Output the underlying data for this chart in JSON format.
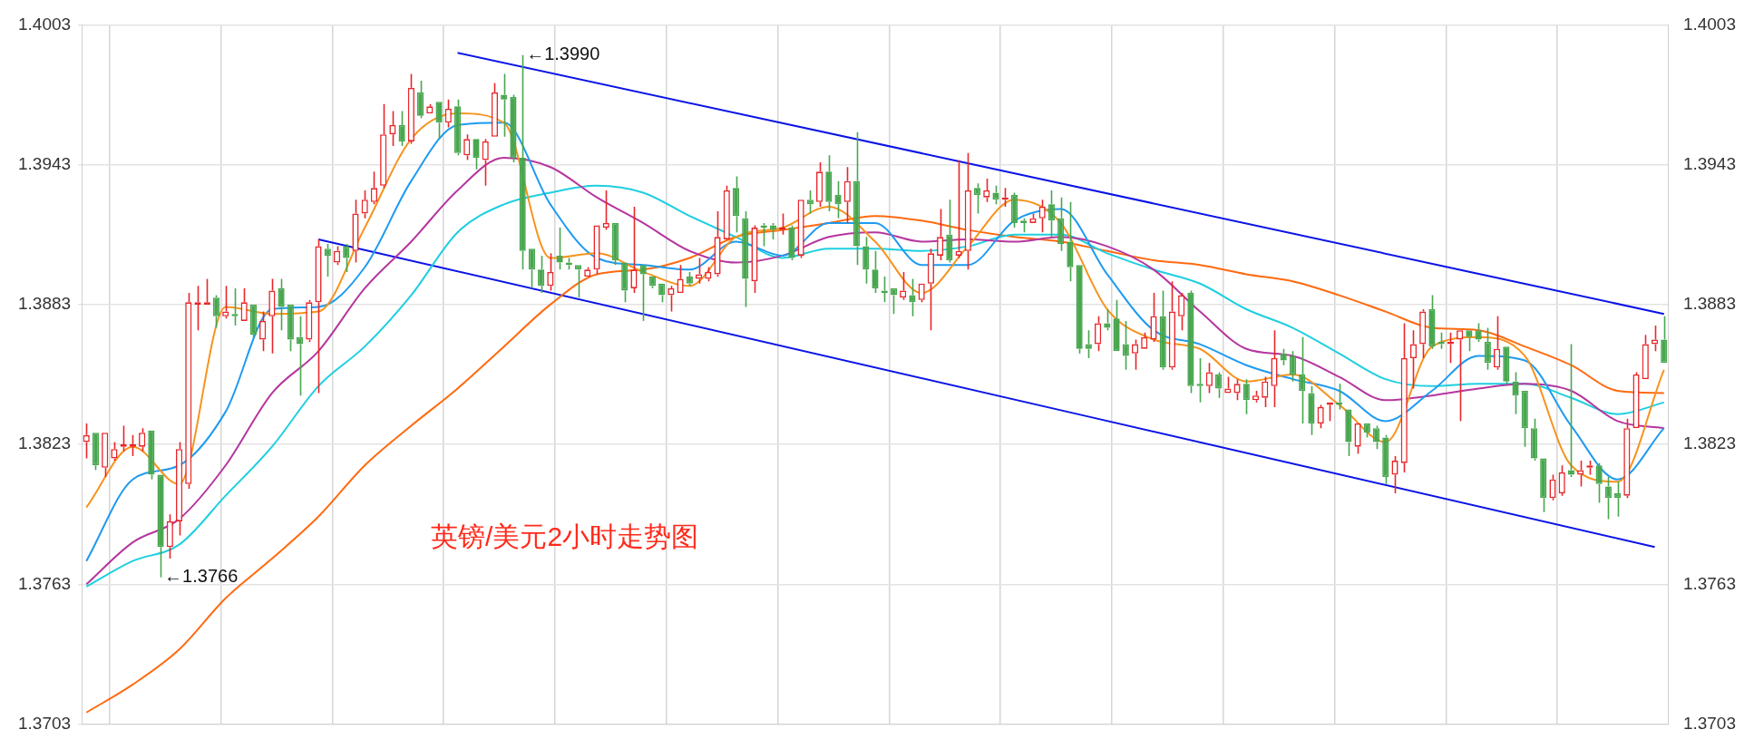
{
  "chart_data": {
    "type": "candlestick",
    "annotations": [
      "英镑/美元2小时走势图",
      "←1.3990",
      "←1.3766"
    ],
    "categories": [
      null,
      null,
      null,
      null,
      null,
      null,
      null,
      null,
      null,
      null,
      null,
      null,
      null,
      null,
      null,
      null,
      null,
      null,
      null,
      null,
      null,
      null,
      null,
      null,
      null,
      null,
      null,
      null,
      null,
      null,
      null,
      null,
      null,
      null,
      null,
      null,
      null,
      null,
      null,
      null,
      null,
      null,
      null,
      null,
      null,
      null,
      null,
      null,
      null,
      null,
      null,
      null,
      null,
      null,
      null,
      null,
      null,
      null,
      null,
      null,
      null,
      null,
      null,
      null,
      null,
      null,
      null,
      null,
      null,
      null,
      null,
      null,
      null,
      null,
      null,
      null,
      null,
      null,
      null,
      null,
      null,
      null,
      null,
      null,
      null,
      null,
      null,
      null,
      null,
      null,
      null,
      null,
      null,
      null,
      null,
      null,
      null,
      null,
      null,
      null,
      null,
      null,
      null,
      null,
      null,
      null,
      null,
      null,
      null,
      null,
      null,
      null,
      null,
      null,
      null,
      null,
      null,
      null,
      null,
      null,
      null,
      null,
      null,
      null,
      null,
      null,
      null,
      null,
      null,
      null,
      null,
      null,
      null,
      null,
      null,
      null,
      null,
      null,
      null,
      null,
      null,
      null,
      null,
      null,
      null,
      null,
      null,
      null,
      null,
      null,
      null,
      null,
      null,
      null,
      null,
      null,
      null,
      null,
      null,
      null,
      null,
      null,
      null,
      null,
      null,
      null,
      null,
      null,
      null,
      null,
      null
    ],
    "ohlc": [
      [
        1.3824,
        1.3832,
        1.3817,
        1.3827
      ],
      [
        1.3828,
        1.3828,
        1.3812,
        1.3814
      ],
      [
        1.3813,
        1.3828,
        1.3809,
        1.3828
      ],
      [
        1.3817,
        1.3824,
        1.3816,
        1.3821
      ],
      [
        1.3822,
        1.3831,
        1.382,
        1.3823
      ],
      [
        1.3822,
        1.3827,
        1.3818,
        1.3823
      ],
      [
        1.3822,
        1.383,
        1.382,
        1.3828
      ],
      [
        1.3829,
        1.3829,
        1.3808,
        1.381
      ],
      [
        1.381,
        1.381,
        1.3766,
        1.3779
      ],
      [
        1.3779,
        1.3793,
        1.3774,
        1.379
      ],
      [
        1.379,
        1.3824,
        1.3784,
        1.3821
      ],
      [
        1.3806,
        1.3888,
        1.3804,
        1.3884
      ],
      [
        1.3883,
        1.3891,
        1.3872,
        1.3884
      ],
      [
        1.3883,
        1.3894,
        1.3883,
        1.3884
      ],
      [
        1.3886,
        1.3887,
        1.3873,
        1.3878
      ],
      [
        1.3878,
        1.3891,
        1.3877,
        1.388
      ],
      [
        1.3879,
        1.389,
        1.3874,
        1.3878
      ],
      [
        1.3876,
        1.389,
        1.3876,
        1.3884
      ],
      [
        1.3883,
        1.3883,
        1.3869,
        1.387
      ],
      [
        1.3868,
        1.388,
        1.3863,
        1.3876
      ],
      [
        1.3878,
        1.3894,
        1.3862,
        1.3889
      ],
      [
        1.389,
        1.3894,
        1.3872,
        1.3882
      ],
      [
        1.3883,
        1.3883,
        1.3863,
        1.3868
      ],
      [
        1.3869,
        1.3878,
        1.3844,
        1.3866
      ],
      [
        1.3868,
        1.3885,
        1.3867,
        1.3884
      ],
      [
        1.3884,
        1.3911,
        1.3845,
        1.3908
      ],
      [
        1.3907,
        1.3909,
        1.3895,
        1.3904
      ],
      [
        1.3901,
        1.3908,
        1.39,
        1.3906
      ],
      [
        1.3908,
        1.3909,
        1.3897,
        1.3903
      ],
      [
        1.3906,
        1.3928,
        1.3901,
        1.3922
      ],
      [
        1.3922,
        1.3932,
        1.392,
        1.3928
      ],
      [
        1.3927,
        1.394,
        1.3926,
        1.3933
      ],
      [
        1.3934,
        1.3969,
        1.3933,
        1.3956
      ],
      [
        1.3956,
        1.3966,
        1.3951,
        1.396
      ],
      [
        1.396,
        1.3966,
        1.3951,
        1.3953
      ],
      [
        1.3953,
        1.3982,
        1.3952,
        1.3976
      ],
      [
        1.3974,
        1.3979,
        1.3963,
        1.3964
      ],
      [
        1.3965,
        1.3969,
        1.3965,
        1.3968
      ],
      [
        1.397,
        1.397,
        1.3954,
        1.3961
      ],
      [
        1.3961,
        1.3971,
        1.3959,
        1.3967
      ],
      [
        1.3968,
        1.3971,
        1.3947,
        1.3948
      ],
      [
        1.3947,
        1.3956,
        1.3945,
        1.3954
      ],
      [
        1.3954,
        1.3954,
        1.3941,
        1.3946
      ],
      [
        1.3945,
        1.3954,
        1.3934,
        1.3953
      ],
      [
        1.3955,
        1.3978,
        1.3955,
        1.3974
      ],
      [
        1.3973,
        1.3982,
        1.3955,
        1.3971
      ],
      [
        1.3972,
        1.3973,
        1.3944,
        1.3946
      ],
      [
        1.3946,
        1.399,
        1.3898,
        1.3906
      ],
      [
        1.3907,
        1.3907,
        1.389,
        1.3898
      ],
      [
        1.3898,
        1.3904,
        1.3888,
        1.3891
      ],
      [
        1.3891,
        1.3905,
        1.3889,
        1.3897
      ],
      [
        1.3904,
        1.3916,
        1.3898,
        1.3901
      ],
      [
        1.3901,
        1.3903,
        1.3898,
        1.39
      ],
      [
        1.39,
        1.39,
        1.3886,
        1.3898
      ],
      [
        1.3895,
        1.3899,
        1.3895,
        1.3898
      ],
      [
        1.3898,
        1.3917,
        1.3896,
        1.3917
      ],
      [
        1.3916,
        1.3932,
        1.3915,
        1.3918
      ],
      [
        1.3918,
        1.3918,
        1.39,
        1.3902
      ],
      [
        1.3901,
        1.3901,
        1.3884,
        1.3889
      ],
      [
        1.389,
        1.3925,
        1.3888,
        1.3898
      ],
      [
        1.39,
        1.39,
        1.3876,
        1.3896
      ],
      [
        1.3895,
        1.3895,
        1.389,
        1.3891
      ],
      [
        1.3892,
        1.3892,
        1.3884,
        1.3887
      ],
      [
        1.3887,
        1.3891,
        1.388,
        1.389
      ],
      [
        1.3888,
        1.39,
        1.3888,
        1.3894
      ],
      [
        1.3895,
        1.3897,
        1.3891,
        1.3892
      ],
      [
        1.3894,
        1.3903,
        1.3892,
        1.3896
      ],
      [
        1.3894,
        1.3899,
        1.3893,
        1.3897
      ],
      [
        1.3896,
        1.3923,
        1.3895,
        1.3912
      ],
      [
        1.3911,
        1.3934,
        1.3911,
        1.3932
      ],
      [
        1.3933,
        1.3938,
        1.3914,
        1.3921
      ],
      [
        1.392,
        1.3923,
        1.3882,
        1.3894
      ],
      [
        1.3893,
        1.3917,
        1.3888,
        1.3916
      ],
      [
        1.3917,
        1.3918,
        1.3908,
        1.3916
      ],
      [
        1.3917,
        1.3918,
        1.3911,
        1.3915
      ],
      [
        1.3915,
        1.3922,
        1.3913,
        1.3916
      ],
      [
        1.3916,
        1.3917,
        1.3902,
        1.3903
      ],
      [
        1.3904,
        1.3928,
        1.3903,
        1.3928
      ],
      [
        1.3928,
        1.3932,
        1.3922,
        1.3926
      ],
      [
        1.3927,
        1.3944,
        1.3925,
        1.394
      ],
      [
        1.394,
        1.3947,
        1.3923,
        1.3927
      ],
      [
        1.393,
        1.3936,
        1.392,
        1.3926
      ],
      [
        1.3927,
        1.3942,
        1.3918,
        1.3936
      ],
      [
        1.3936,
        1.3957,
        1.39,
        1.3908
      ],
      [
        1.3908,
        1.3912,
        1.3892,
        1.3898
      ],
      [
        1.3898,
        1.3906,
        1.3888,
        1.389
      ],
      [
        1.3889,
        1.3895,
        1.3884,
        1.3888
      ],
      [
        1.389,
        1.389,
        1.3879,
        1.3887
      ],
      [
        1.3886,
        1.3897,
        1.3885,
        1.3889
      ],
      [
        1.3887,
        1.3894,
        1.3878,
        1.3884
      ],
      [
        1.3885,
        1.3892,
        1.3884,
        1.3892
      ],
      [
        1.3892,
        1.3907,
        1.3872,
        1.3905
      ],
      [
        1.3904,
        1.3924,
        1.3902,
        1.3912
      ],
      [
        1.3913,
        1.3928,
        1.3901,
        1.3902
      ],
      [
        1.3904,
        1.3945,
        1.3903,
        1.3906
      ],
      [
        1.3906,
        1.3948,
        1.3898,
        1.3932
      ],
      [
        1.3933,
        1.3935,
        1.3922,
        1.393
      ],
      [
        1.3929,
        1.3937,
        1.3927,
        1.3932
      ],
      [
        1.3931,
        1.3934,
        1.3926,
        1.3928
      ],
      [
        1.3928,
        1.3933,
        1.3925,
        1.3929
      ],
      [
        1.393,
        1.3931,
        1.3916,
        1.3918
      ],
      [
        1.3919,
        1.392,
        1.3914,
        1.3918
      ],
      [
        1.3918,
        1.3922,
        1.3918,
        1.392
      ],
      [
        1.392,
        1.3928,
        1.3914,
        1.3925
      ],
      [
        1.3926,
        1.3932,
        1.3912,
        1.3919
      ],
      [
        1.392,
        1.3929,
        1.3906,
        1.3909
      ],
      [
        1.391,
        1.3927,
        1.3893,
        1.3899
      ],
      [
        1.39,
        1.39,
        1.3862,
        1.3864
      ],
      [
        1.3866,
        1.3872,
        1.386,
        1.3864
      ],
      [
        1.3866,
        1.3878,
        1.3863,
        1.3875
      ],
      [
        1.3875,
        1.3881,
        1.3872,
        1.3873
      ],
      [
        1.3877,
        1.3885,
        1.3863,
        1.3863
      ],
      [
        1.3866,
        1.3876,
        1.3855,
        1.3861
      ],
      [
        1.3862,
        1.3868,
        1.3855,
        1.3866
      ],
      [
        1.3864,
        1.3871,
        1.3864,
        1.3869
      ],
      [
        1.3868,
        1.3888,
        1.3867,
        1.3878
      ],
      [
        1.3878,
        1.3889,
        1.3855,
        1.3856
      ],
      [
        1.3856,
        1.3893,
        1.3855,
        1.388
      ],
      [
        1.3878,
        1.3888,
        1.3872,
        1.3887
      ],
      [
        1.3888,
        1.3889,
        1.3845,
        1.3848
      ],
      [
        1.3849,
        1.386,
        1.3841,
        1.3848
      ],
      [
        1.3848,
        1.3858,
        1.3845,
        1.3854
      ],
      [
        1.3853,
        1.3854,
        1.3843,
        1.3847
      ],
      [
        1.3845,
        1.3852,
        1.3845,
        1.3847
      ],
      [
        1.3845,
        1.3851,
        1.3842,
        1.3849
      ],
      [
        1.3849,
        1.3851,
        1.3836,
        1.3842
      ],
      [
        1.3842,
        1.3846,
        1.3841,
        1.3844
      ],
      [
        1.3843,
        1.3852,
        1.3839,
        1.385
      ],
      [
        1.3848,
        1.3872,
        1.3839,
        1.386
      ],
      [
        1.3862,
        1.3864,
        1.3857,
        1.3859
      ],
      [
        1.3861,
        1.3863,
        1.385,
        1.3853
      ],
      [
        1.3853,
        1.3869,
        1.3832,
        1.3846
      ],
      [
        1.3845,
        1.3848,
        1.3827,
        1.3832
      ],
      [
        1.3832,
        1.384,
        1.383,
        1.3839
      ],
      [
        1.384,
        1.3841,
        1.3833,
        1.3841
      ],
      [
        1.3841,
        1.3849,
        1.3838,
        1.384
      ],
      [
        1.3838,
        1.3838,
        1.3818,
        1.3824
      ],
      [
        1.3822,
        1.3832,
        1.3819,
        1.3832
      ],
      [
        1.3832,
        1.3832,
        1.3826,
        1.3828
      ],
      [
        1.383,
        1.3831,
        1.3821,
        1.3824
      ],
      [
        1.3826,
        1.3827,
        1.3806,
        1.3809
      ],
      [
        1.381,
        1.3818,
        1.3802,
        1.3816
      ],
      [
        1.3815,
        1.3875,
        1.3811,
        1.386
      ],
      [
        1.386,
        1.3872,
        1.3847,
        1.3866
      ],
      [
        1.3866,
        1.3881,
        1.386,
        1.388
      ],
      [
        1.3881,
        1.3887,
        1.3864,
        1.3865
      ],
      [
        1.3867,
        1.3871,
        1.3864,
        1.3866
      ],
      [
        1.3866,
        1.3871,
        1.3858,
        1.3867
      ],
      [
        1.3868,
        1.3872,
        1.3833,
        1.3872
      ],
      [
        1.3872,
        1.3872,
        1.3863,
        1.3869
      ],
      [
        1.3872,
        1.3875,
        1.3867,
        1.3868
      ],
      [
        1.3867,
        1.3873,
        1.3855,
        1.3858
      ],
      [
        1.3856,
        1.3878,
        1.3855,
        1.3864
      ],
      [
        1.3865,
        1.3865,
        1.3849,
        1.385
      ],
      [
        1.385,
        1.3854,
        1.3836,
        1.3844
      ],
      [
        1.3846,
        1.3846,
        1.3822,
        1.383
      ],
      [
        1.383,
        1.3834,
        1.3816,
        1.3817
      ],
      [
        1.3817,
        1.3817,
        1.3794,
        1.38
      ],
      [
        1.38,
        1.381,
        1.3799,
        1.3808
      ],
      [
        1.3802,
        1.3814,
        1.3801,
        1.3811
      ],
      [
        1.3812,
        1.3866,
        1.3809,
        1.381
      ],
      [
        1.381,
        1.3816,
        1.3805,
        1.3812
      ],
      [
        1.3813,
        1.3816,
        1.381,
        1.3814
      ],
      [
        1.3814,
        1.3815,
        1.3798,
        1.3806
      ],
      [
        1.3805,
        1.3809,
        1.3791,
        1.38
      ],
      [
        1.3802,
        1.3807,
        1.3792,
        1.38
      ],
      [
        1.3801,
        1.3834,
        1.38,
        1.383
      ],
      [
        1.383,
        1.3854,
        1.383,
        1.3853
      ],
      [
        1.3851,
        1.387,
        1.3851,
        1.3866
      ],
      [
        1.3866,
        1.3874,
        1.3863,
        1.3868
      ],
      [
        1.3868,
        1.3878,
        1.3858,
        1.3858
      ]
    ],
    "colors": [
      "#e8262a",
      "#48a64f",
      "#e8262a",
      "#e8262a",
      "#e8262a",
      "#e8262a",
      "#e8262a",
      "#48a64f",
      "#48a64f",
      "#e8262a",
      "#e8262a",
      "#e8262a",
      "#e8262a",
      "#e8262a",
      "#48a64f",
      "#e8262a",
      "#48a64f",
      "#e8262a",
      "#48a64f",
      "#e8262a",
      "#e8262a",
      "#48a64f",
      "#48a64f",
      "#48a64f",
      "#e8262a",
      "#e8262a",
      "#48a64f",
      "#e8262a",
      "#48a64f",
      "#e8262a",
      "#e8262a",
      "#e8262a",
      "#e8262a",
      "#e8262a",
      "#48a64f",
      "#e8262a",
      "#48a64f",
      "#e8262a",
      "#48a64f",
      "#e8262a",
      "#48a64f",
      "#e8262a",
      "#48a64f",
      "#e8262a",
      "#e8262a",
      "#48a64f",
      "#48a64f",
      "#48a64f",
      "#48a64f",
      "#48a64f",
      "#e8262a",
      "#48a64f",
      "#48a64f",
      "#48a64f",
      "#e8262a",
      "#e8262a",
      "#e8262a",
      "#48a64f",
      "#48a64f",
      "#e8262a",
      "#48a64f",
      "#48a64f",
      "#48a64f",
      "#e8262a",
      "#e8262a",
      "#48a64f",
      "#e8262a",
      "#e8262a",
      "#e8262a",
      "#e8262a",
      "#48a64f",
      "#48a64f",
      "#e8262a",
      "#48a64f",
      "#48a64f",
      "#e8262a",
      "#48a64f",
      "#e8262a",
      "#48a64f",
      "#e8262a",
      "#48a64f",
      "#48a64f",
      "#e8262a",
      "#48a64f",
      "#48a64f",
      "#48a64f",
      "#48a64f",
      "#48a64f",
      "#e8262a",
      "#48a64f",
      "#e8262a",
      "#e8262a",
      "#e8262a",
      "#48a64f",
      "#e8262a",
      "#e8262a",
      "#48a64f",
      "#e8262a",
      "#48a64f",
      "#e8262a",
      "#48a64f",
      "#48a64f",
      "#e8262a",
      "#e8262a",
      "#48a64f",
      "#48a64f",
      "#48a64f",
      "#48a64f",
      "#48a64f",
      "#e8262a",
      "#48a64f",
      "#48a64f",
      "#48a64f",
      "#e8262a",
      "#e8262a",
      "#e8262a",
      "#48a64f",
      "#e8262a",
      "#e8262a",
      "#48a64f",
      "#48a64f",
      "#e8262a",
      "#48a64f",
      "#e8262a",
      "#e8262a",
      "#48a64f",
      "#e8262a",
      "#e8262a",
      "#e8262a",
      "#48a64f",
      "#48a64f",
      "#48a64f",
      "#48a64f",
      "#e8262a",
      "#e8262a",
      "#48a64f",
      "#48a64f",
      "#e8262a",
      "#48a64f",
      "#48a64f",
      "#48a64f",
      "#e8262a",
      "#e8262a",
      "#e8262a",
      "#e8262a",
      "#48a64f",
      "#48a64f",
      "#e8262a",
      "#e8262a",
      "#48a64f",
      "#48a64f",
      "#48a64f",
      "#e8262a",
      "#48a64f",
      "#48a64f",
      "#48a64f",
      "#48a64f",
      "#48a64f",
      "#e8262a",
      "#e8262a",
      "#48a64f",
      "#e8262a",
      "#e8262a",
      "#48a64f",
      "#48a64f",
      "#48a64f",
      "#e8262a",
      "#e8262a",
      "#e8262a",
      "#e8262a",
      "#48a64f"
    ],
    "series": [
      {
        "type": "line",
        "color": "#f7931e",
        "values": [
          1.3796,
          null,
          null,
          null,
          null,
          1.3822,
          null,
          null,
          null,
          null,
          1.3806,
          null,
          null,
          null,
          null,
          1.3882,
          null,
          null,
          null,
          null,
          1.3879,
          null,
          null,
          null,
          null,
          1.388,
          null,
          null,
          null,
          null,
          1.3916,
          null,
          null,
          null,
          null,
          1.3954,
          null,
          null,
          null,
          null,
          1.3965,
          null,
          null,
          null,
          null,
          1.3961,
          null,
          null,
          null,
          null,
          1.3903,
          null,
          null,
          null,
          null,
          1.3905,
          null,
          null,
          null,
          null,
          1.3897,
          null,
          null,
          null,
          null,
          1.3891,
          null,
          null,
          null,
          null,
          1.3912,
          null,
          null,
          null,
          null,
          1.3916,
          null,
          null,
          null,
          null,
          1.3925,
          null,
          null,
          null,
          null,
          1.391,
          null,
          null,
          null,
          null,
          1.3888,
          null,
          null,
          null,
          null,
          1.3908,
          null,
          null,
          null,
          null,
          1.3928,
          null,
          null,
          null,
          null,
          1.3918,
          null,
          null,
          null,
          null,
          1.3881,
          null,
          null,
          null,
          null,
          1.3868,
          null,
          null,
          null,
          null,
          1.3864,
          null,
          null,
          null,
          null,
          1.385,
          null,
          null,
          null,
          null,
          1.3853,
          null,
          null,
          null,
          null,
          1.384,
          null,
          null,
          null,
          null,
          1.3824,
          null,
          null,
          null,
          null,
          1.3865,
          null,
          null,
          null,
          null,
          1.3869,
          null,
          null,
          null,
          null,
          1.3861,
          null,
          null,
          null,
          null,
          1.3814,
          null,
          null,
          null,
          null,
          1.3807,
          null,
          null,
          null,
          null,
          1.3855
        ]
      },
      {
        "type": "line",
        "color": "#1e9bf0",
        "values": [
          1.3773,
          null,
          null,
          null,
          null,
          1.3808,
          null,
          null,
          null,
          null,
          1.3814,
          null,
          null,
          null,
          null,
          1.3837,
          null,
          null,
          null,
          null,
          1.3881,
          null,
          null,
          null,
          null,
          1.3882,
          null,
          null,
          null,
          null,
          1.3899,
          null,
          null,
          null,
          null,
          1.3936,
          null,
          null,
          null,
          null,
          1.396,
          null,
          null,
          null,
          null,
          1.3961,
          null,
          null,
          null,
          null,
          1.3926,
          null,
          null,
          null,
          null,
          1.3903,
          null,
          null,
          null,
          null,
          1.39,
          null,
          null,
          null,
          null,
          1.3898,
          null,
          null,
          null,
          null,
          1.391,
          null,
          null,
          null,
          null,
          1.3904,
          null,
          null,
          null,
          null,
          1.3918,
          null,
          null,
          null,
          null,
          1.3918,
          null,
          null,
          null,
          null,
          1.39,
          null,
          null,
          null,
          null,
          1.39,
          null,
          null,
          null,
          null,
          1.3919,
          null,
          null,
          null,
          null,
          1.3924,
          null,
          null,
          null,
          null,
          1.3896,
          null,
          null,
          null,
          null,
          1.3872,
          null,
          null,
          null,
          null,
          1.3866,
          null,
          null,
          null,
          null,
          1.3857,
          null,
          null,
          null,
          null,
          1.3851,
          null,
          null,
          null,
          null,
          1.3846,
          null,
          null,
          null,
          null,
          1.3833,
          null,
          null,
          null,
          null,
          1.3846,
          null,
          null,
          null,
          null,
          1.3861,
          null,
          null,
          null,
          null,
          1.3859,
          null,
          null,
          null,
          null,
          1.3831,
          null,
          null,
          null,
          null,
          1.3808,
          null,
          null,
          null,
          null,
          1.383
        ]
      },
      {
        "type": "line",
        "color": "#b5369f",
        "values": [
          1.3763,
          null,
          null,
          null,
          null,
          1.3781,
          null,
          null,
          null,
          null,
          1.3791,
          null,
          null,
          null,
          null,
          1.3814,
          null,
          null,
          null,
          null,
          1.3845,
          null,
          null,
          null,
          null,
          1.3863,
          null,
          null,
          null,
          null,
          1.389,
          null,
          null,
          null,
          null,
          1.391,
          null,
          null,
          null,
          null,
          1.3932,
          null,
          null,
          null,
          null,
          1.3946,
          null,
          null,
          null,
          null,
          1.3942,
          null,
          null,
          null,
          null,
          1.3929,
          null,
          null,
          null,
          null,
          1.3918,
          null,
          null,
          null,
          null,
          1.3906,
          null,
          null,
          null,
          null,
          1.3901,
          null,
          null,
          null,
          null,
          1.3904,
          null,
          null,
          null,
          null,
          1.3912,
          null,
          null,
          null,
          null,
          1.3914,
          null,
          null,
          null,
          null,
          1.391,
          null,
          null,
          null,
          null,
          1.3911,
          null,
          null,
          null,
          null,
          1.391,
          null,
          null,
          null,
          null,
          1.3912,
          null,
          null,
          null,
          null,
          1.3908,
          null,
          null,
          null,
          null,
          1.3898,
          null,
          null,
          null,
          null,
          1.388,
          null,
          null,
          null,
          null,
          1.3864,
          null,
          null,
          null,
          null,
          1.3861,
          null,
          null,
          null,
          null,
          1.3852,
          null,
          null,
          null,
          null,
          1.3842,
          null,
          null,
          null,
          null,
          1.3844,
          null,
          null,
          null,
          null,
          1.3847,
          null,
          null,
          null,
          null,
          1.3849,
          null,
          null,
          null,
          null,
          1.3846,
          null,
          null,
          null,
          null,
          1.3833,
          null,
          null,
          null,
          null,
          1.383
        ]
      },
      {
        "type": "line",
        "color": "#1ecfe0",
        "values": [
          1.3762,
          null,
          null,
          null,
          null,
          1.3773,
          null,
          null,
          null,
          null,
          1.378,
          null,
          null,
          null,
          null,
          1.3801,
          null,
          null,
          null,
          null,
          1.3822,
          null,
          null,
          null,
          null,
          1.3848,
          null,
          null,
          null,
          null,
          1.3865,
          null,
          null,
          null,
          null,
          1.3887,
          null,
          null,
          null,
          null,
          1.3914,
          null,
          null,
          null,
          null,
          1.3926,
          null,
          null,
          null,
          null,
          1.3931,
          null,
          null,
          null,
          null,
          1.3934,
          null,
          null,
          null,
          null,
          1.3931,
          null,
          null,
          null,
          null,
          1.3921,
          null,
          null,
          null,
          null,
          1.3912,
          null,
          null,
          null,
          null,
          1.3903,
          null,
          null,
          null,
          null,
          1.3907,
          null,
          null,
          null,
          null,
          1.3907,
          null,
          null,
          null,
          null,
          1.3906,
          null,
          null,
          null,
          null,
          1.3908,
          null,
          null,
          null,
          null,
          1.3913,
          null,
          null,
          null,
          null,
          1.3913,
          null,
          null,
          null,
          null,
          1.3905,
          null,
          null,
          null,
          null,
          1.3898,
          null,
          null,
          null,
          null,
          1.3892,
          null,
          null,
          null,
          null,
          1.3881,
          null,
          null,
          null,
          null,
          1.3873,
          null,
          null,
          null,
          null,
          1.3862,
          null,
          null,
          null,
          null,
          1.3851,
          null,
          null,
          null,
          null,
          1.3848,
          null,
          null,
          null,
          null,
          1.3849,
          null,
          null,
          null,
          null,
          1.3849,
          null,
          null,
          null,
          null,
          1.3843,
          null,
          null,
          null,
          null,
          1.3836,
          null,
          null,
          null,
          null,
          1.3841
        ]
      },
      {
        "type": "line",
        "color": "#ff6a10",
        "values": [
          1.3708,
          null,
          null,
          null,
          null,
          1.372,
          null,
          null,
          null,
          null,
          1.3735,
          null,
          null,
          null,
          null,
          1.3757,
          null,
          null,
          null,
          null,
          1.3774,
          null,
          null,
          null,
          null,
          1.3792,
          null,
          null,
          null,
          null,
          1.3814,
          null,
          null,
          null,
          null,
          1.3831,
          null,
          null,
          null,
          null,
          1.3847,
          null,
          null,
          null,
          null,
          1.3865,
          null,
          null,
          null,
          null,
          1.3883,
          null,
          null,
          null,
          null,
          1.3896,
          null,
          null,
          null,
          null,
          1.3898,
          null,
          null,
          null,
          null,
          1.3903,
          null,
          null,
          null,
          null,
          1.3912,
          null,
          null,
          null,
          null,
          1.3915,
          null,
          null,
          null,
          null,
          1.3918,
          null,
          null,
          null,
          null,
          1.3921,
          null,
          null,
          null,
          null,
          1.3919,
          null,
          null,
          null,
          null,
          1.3915,
          null,
          null,
          null,
          null,
          1.3912,
          null,
          null,
          null,
          null,
          1.391,
          null,
          null,
          null,
          null,
          1.3906,
          null,
          null,
          null,
          null,
          1.3902,
          null,
          null,
          null,
          null,
          1.39,
          null,
          null,
          null,
          null,
          1.3896,
          null,
          null,
          null,
          null,
          1.3893,
          null,
          null,
          null,
          null,
          1.3887,
          null,
          null,
          null,
          null,
          1.388,
          null,
          null,
          null,
          null,
          1.3873,
          null,
          null,
          null,
          null,
          1.3872,
          null,
          null,
          null,
          null,
          1.3865,
          null,
          null,
          null,
          null,
          1.3857,
          null,
          null,
          null,
          null,
          1.3846,
          null,
          null,
          null,
          null,
          1.3845
        ]
      },
      {
        "type": "line",
        "color": "#0a14e6",
        "values": [
          null,
          null,
          null,
          null,
          null,
          null,
          null,
          null,
          null,
          null,
          null,
          null,
          null,
          null,
          null,
          null,
          null,
          null,
          null,
          null,
          null,
          null,
          null,
          null,
          null,
          null,
          null,
          null,
          null,
          null,
          null,
          null,
          null,
          null,
          null,
          null,
          null,
          null,
          null,
          null,
          1.3991,
          null,
          null,
          null,
          null,
          null,
          null,
          null,
          null,
          null,
          null,
          null,
          null,
          null,
          null,
          null,
          null,
          null,
          null,
          null,
          null,
          null,
          null,
          null,
          null,
          null,
          null,
          null,
          null,
          null,
          null,
          null,
          null,
          null,
          null,
          null,
          null,
          null,
          null,
          null,
          null,
          null,
          null,
          null,
          null,
          null,
          null,
          null,
          null,
          null,
          null,
          null,
          null,
          null,
          null,
          null,
          null,
          null,
          null,
          null,
          null,
          null,
          null,
          null,
          null,
          null,
          null,
          null,
          null,
          null,
          null,
          null,
          null,
          null,
          null,
          null,
          null,
          null,
          null,
          null,
          null,
          null,
          null,
          null,
          null,
          null,
          null,
          null,
          null,
          null,
          null,
          null,
          null,
          null,
          null,
          null,
          null,
          null,
          null,
          null,
          null,
          null,
          null,
          null,
          null,
          null,
          null,
          null,
          null,
          null,
          null,
          null,
          null,
          null,
          null,
          null,
          null,
          null,
          null,
          null,
          null,
          null,
          null,
          null,
          null,
          null,
          null,
          null,
          null,
          null,
          1.3879
        ]
      },
      {
        "type": "line",
        "color": "#0a14e6",
        "values": [
          null,
          null,
          null,
          null,
          null,
          null,
          null,
          null,
          null,
          null,
          null,
          null,
          null,
          null,
          null,
          null,
          null,
          null,
          null,
          null,
          null,
          null,
          null,
          null,
          null,
          1.3911,
          null,
          null,
          null,
          null,
          null,
          null,
          null,
          null,
          null,
          null,
          null,
          null,
          null,
          null,
          null,
          null,
          null,
          null,
          null,
          null,
          null,
          null,
          null,
          null,
          null,
          null,
          null,
          null,
          null,
          null,
          null,
          null,
          null,
          null,
          null,
          null,
          null,
          null,
          null,
          null,
          null,
          null,
          null,
          null,
          null,
          null,
          null,
          null,
          null,
          null,
          null,
          null,
          null,
          null,
          null,
          null,
          null,
          null,
          null,
          null,
          null,
          null,
          null,
          null,
          null,
          null,
          null,
          null,
          null,
          null,
          null,
          null,
          null,
          null,
          null,
          null,
          null,
          null,
          null,
          null,
          null,
          null,
          null,
          null,
          null,
          null,
          null,
          null,
          null,
          null,
          null,
          null,
          null,
          null,
          null,
          null,
          null,
          null,
          null,
          null,
          null,
          null,
          null,
          null,
          null,
          null,
          null,
          null,
          null,
          null,
          null,
          null,
          null,
          null,
          null,
          null,
          null,
          null,
          null,
          null,
          null,
          null,
          null,
          null,
          null,
          null,
          null,
          null,
          null,
          null,
          null,
          null,
          null,
          null,
          null,
          null,
          null,
          null,
          null,
          null,
          null,
          null,
          null,
          1.3779,
          null
        ]
      }
    ],
    "ylim": [
      1.3703,
      1.4003
    ],
    "yticks": [
      1.3703,
      1.3763,
      1.3823,
      1.3883,
      1.3943,
      1.4003
    ],
    "y2lim": [
      1.3703,
      1.4003
    ],
    "y2ticks": [
      1.3703,
      1.3763,
      1.3823,
      1.3883,
      1.3943,
      1.4003
    ],
    "tick_labels": "y",
    "grid": true,
    "legend": false,
    "marker": "none"
  }
}
